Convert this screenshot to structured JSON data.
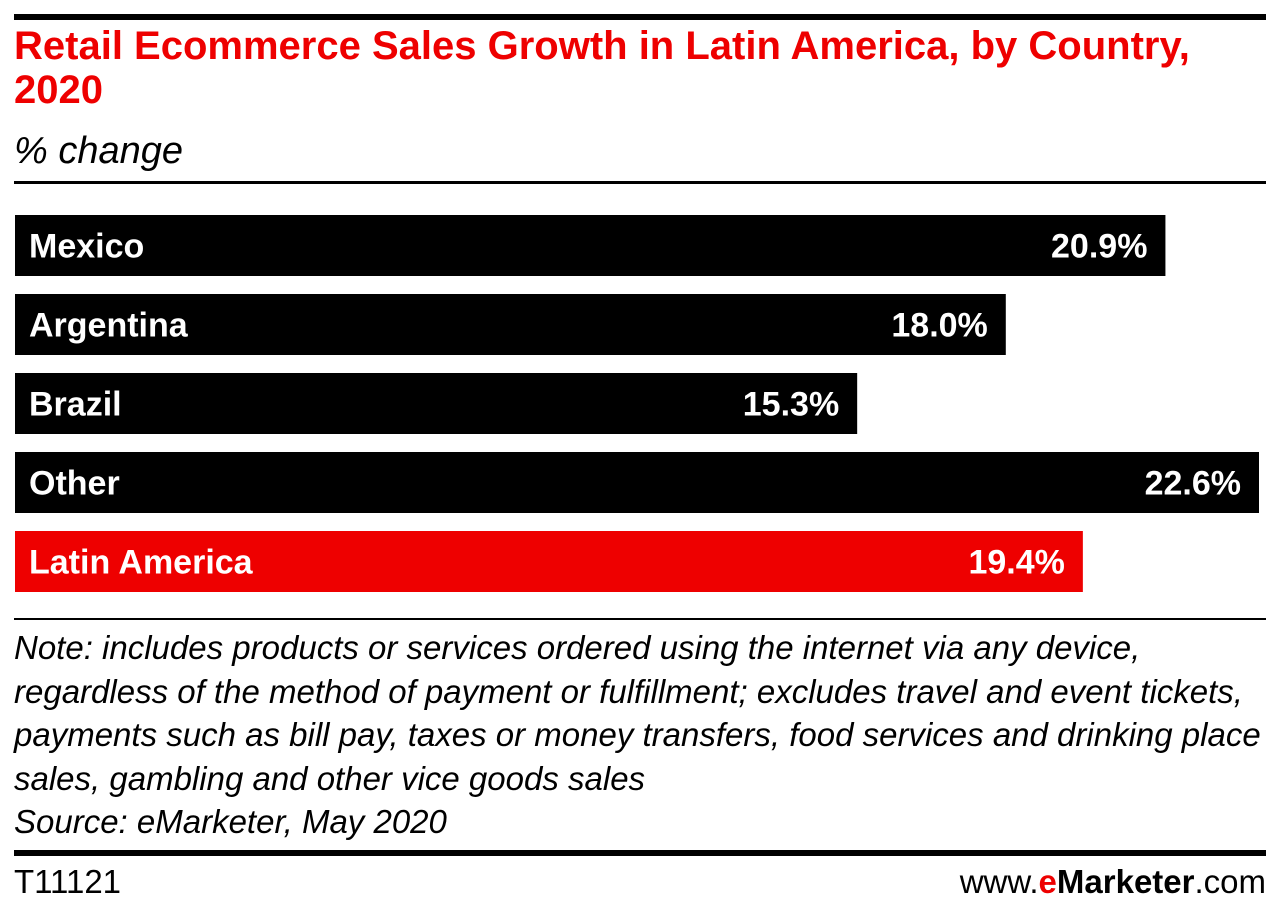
{
  "chart_data": {
    "type": "bar",
    "orientation": "horizontal",
    "title": "Retail Ecommerce Sales Growth in Latin America, by Country, 2020",
    "subtitle": "% change",
    "categories": [
      "Mexico",
      "Argentina",
      "Brazil",
      "Other",
      "Latin America"
    ],
    "values": [
      20.9,
      18.0,
      15.3,
      22.6,
      19.4
    ],
    "value_labels": [
      "20.9%",
      "18.0%",
      "15.3%",
      "22.6%",
      "19.4%"
    ],
    "xlim": [
      0,
      22.6
    ],
    "grid": false,
    "legend": "none",
    "colors": {
      "default": "#000000",
      "highlight": "#ee0000",
      "highlight_category": "Latin America",
      "label_text": "#ffffff"
    }
  },
  "note": "Note: includes products or services ordered using the internet via any device, regardless of the method of payment or fulfillment; excludes travel and event tickets, payments such as bill pay, taxes or money transfers, food services and drinking place sales, gambling and other vice goods sales",
  "source": "Source: eMarketer, May 2020",
  "footer": {
    "code": "T11121",
    "brand_prefix": "www.",
    "brand_e": "e",
    "brand_name": "Marketer",
    "brand_suffix": ".com"
  },
  "colors": {
    "title": "#ee0000",
    "text": "#000000",
    "background": "#ffffff"
  }
}
